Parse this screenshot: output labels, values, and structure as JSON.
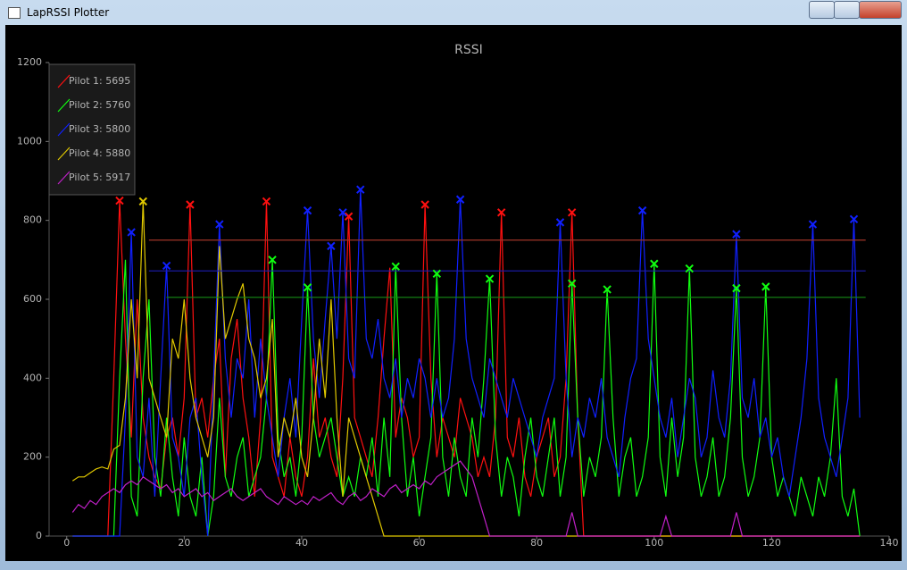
{
  "window": {
    "title": "LapRSSI Plotter"
  },
  "chart_data": {
    "type": "line",
    "title": "RSSI",
    "xlim": [
      -3,
      140
    ],
    "xticks": [
      0,
      20,
      40,
      60,
      80,
      100,
      120,
      140
    ],
    "ylim": [
      0,
      1200
    ],
    "yticks": [
      0,
      200,
      400,
      600,
      800,
      1000,
      1200
    ],
    "grid": false,
    "legend": "top-left",
    "x": [
      1,
      2,
      3,
      4,
      5,
      6,
      7,
      8,
      9,
      10,
      11,
      12,
      13,
      14,
      15,
      16,
      17,
      18,
      19,
      20,
      21,
      22,
      23,
      24,
      25,
      26,
      27,
      28,
      29,
      30,
      31,
      32,
      33,
      34,
      35,
      36,
      37,
      38,
      39,
      40,
      41,
      42,
      43,
      44,
      45,
      46,
      47,
      48,
      49,
      50,
      51,
      52,
      53,
      54,
      55,
      56,
      57,
      58,
      59,
      60,
      61,
      62,
      63,
      64,
      65,
      66,
      67,
      68,
      69,
      70,
      71,
      72,
      73,
      74,
      75,
      76,
      77,
      78,
      79,
      80,
      81,
      82,
      83,
      84,
      85,
      86,
      87,
      88,
      89,
      90,
      91,
      92,
      93,
      94,
      95,
      96,
      97,
      98,
      99,
      100,
      101,
      102,
      103,
      104,
      105,
      106,
      107,
      108,
      109,
      110,
      111,
      112,
      113,
      114,
      115,
      116,
      117,
      118,
      119,
      120,
      121,
      122,
      123,
      124,
      125,
      126,
      127,
      128,
      129,
      130,
      131,
      132,
      133,
      134,
      135
    ],
    "series": [
      {
        "name": "Pilot 1: 5695",
        "color": "#ff1010",
        "values": [
          0,
          0,
          0,
          0,
          0,
          0,
          0,
          400,
          850,
          500,
          250,
          600,
          300,
          200,
          150,
          120,
          250,
          300,
          200,
          350,
          840,
          300,
          350,
          250,
          400,
          500,
          150,
          450,
          550,
          350,
          250,
          100,
          300,
          848,
          200,
          150,
          100,
          250,
          150,
          100,
          200,
          450,
          250,
          300,
          200,
          150,
          400,
          810,
          300,
          250,
          200,
          150,
          300,
          500,
          680,
          250,
          350,
          300,
          200,
          250,
          840,
          400,
          200,
          300,
          250,
          200,
          350,
          300,
          250,
          150,
          200,
          150,
          300,
          820,
          250,
          200,
          300,
          150,
          100,
          200,
          250,
          300,
          150,
          200,
          400,
          820,
          300,
          0,
          0,
          0,
          0,
          0,
          0,
          0,
          0,
          0,
          0,
          0,
          0,
          0,
          0,
          0,
          0,
          0,
          0,
          0,
          0,
          0,
          0,
          0,
          0,
          0,
          0,
          0,
          0,
          0,
          0,
          0,
          0,
          0,
          0,
          0,
          0,
          0,
          0,
          0,
          0,
          0,
          0,
          0,
          0,
          0,
          0,
          0,
          0
        ],
        "peaks": {
          "x": [
            9,
            21,
            34,
            48,
            61,
            74,
            86
          ],
          "y": [
            850,
            840,
            848,
            810,
            840,
            820,
            820
          ]
        }
      },
      {
        "name": "Pilot 2: 5760",
        "color": "#10ff10",
        "values": [
          0,
          0,
          0,
          0,
          0,
          0,
          0,
          0,
          400,
          700,
          100,
          50,
          400,
          600,
          200,
          100,
          300,
          150,
          50,
          250,
          100,
          50,
          200,
          0,
          100,
          350,
          150,
          100,
          200,
          250,
          100,
          150,
          200,
          350,
          700,
          250,
          150,
          200,
          100,
          250,
          630,
          300,
          200,
          250,
          300,
          200,
          100,
          150,
          100,
          200,
          150,
          250,
          100,
          300,
          150,
          683,
          300,
          100,
          200,
          50,
          150,
          250,
          665,
          200,
          100,
          250,
          150,
          100,
          300,
          200,
          400,
          652,
          250,
          100,
          200,
          150,
          50,
          200,
          300,
          150,
          100,
          200,
          300,
          100,
          200,
          640,
          300,
          100,
          200,
          150,
          250,
          625,
          300,
          100,
          200,
          250,
          100,
          150,
          250,
          690,
          200,
          100,
          300,
          150,
          250,
          678,
          200,
          100,
          150,
          250,
          100,
          150,
          300,
          628,
          200,
          100,
          150,
          250,
          632,
          200,
          100,
          150,
          100,
          50,
          150,
          100,
          50,
          150,
          100,
          200,
          400,
          100,
          50,
          120,
          0
        ],
        "peaks": {
          "x": [
            35,
            41,
            56,
            63,
            72,
            86,
            92,
            100,
            106,
            114,
            119
          ],
          "y": [
            700,
            630,
            683,
            665,
            652,
            640,
            625,
            690,
            678,
            628,
            632
          ]
        }
      },
      {
        "name": "Pilot 3: 5800",
        "color": "#1020ff",
        "values": [
          0,
          0,
          0,
          0,
          0,
          0,
          0,
          0,
          0,
          300,
          770,
          200,
          150,
          350,
          100,
          400,
          685,
          250,
          200,
          100,
          300,
          350,
          150,
          0,
          400,
          790,
          450,
          300,
          450,
          400,
          600,
          300,
          500,
          350,
          250,
          150,
          300,
          400,
          250,
          550,
          825,
          500,
          350,
          550,
          735,
          500,
          820,
          450,
          400,
          878,
          500,
          450,
          550,
          400,
          350,
          450,
          300,
          400,
          350,
          450,
          400,
          300,
          400,
          300,
          350,
          500,
          853,
          500,
          400,
          350,
          300,
          450,
          400,
          350,
          300,
          400,
          350,
          300,
          250,
          200,
          300,
          350,
          400,
          795,
          400,
          200,
          300,
          250,
          350,
          300,
          400,
          250,
          200,
          150,
          300,
          400,
          450,
          825,
          500,
          400,
          300,
          250,
          350,
          200,
          300,
          400,
          350,
          200,
          250,
          420,
          300,
          250,
          400,
          765,
          350,
          300,
          400,
          250,
          300,
          200,
          250,
          150,
          100,
          200,
          300,
          450,
          790,
          350,
          250,
          200,
          150,
          250,
          350,
          803,
          300
        ],
        "peaks": {
          "x": [
            11,
            17,
            26,
            41,
            45,
            47,
            50,
            67,
            84,
            98,
            114,
            127,
            134
          ],
          "y": [
            770,
            685,
            790,
            825,
            735,
            820,
            878,
            853,
            795,
            825,
            765,
            790,
            803
          ]
        }
      },
      {
        "name": "Pilot 4: 5880",
        "color": "#e0c800",
        "values": [
          140,
          150,
          150,
          160,
          170,
          175,
          170,
          220,
          230,
          350,
          600,
          400,
          848,
          400,
          350,
          300,
          250,
          500,
          450,
          600,
          400,
          300,
          250,
          200,
          300,
          735,
          500,
          550,
          600,
          640,
          500,
          450,
          350,
          400,
          550,
          200,
          300,
          250,
          350,
          200,
          150,
          300,
          500,
          350,
          600,
          300,
          100,
          300,
          250,
          200,
          150,
          100,
          50,
          0,
          0,
          0,
          0,
          0,
          0,
          0,
          0,
          0,
          0,
          0,
          0,
          0,
          0,
          0,
          0,
          0,
          0,
          0,
          0,
          0,
          0,
          0,
          0,
          0,
          0,
          0,
          0,
          0,
          0,
          0,
          0,
          0,
          0,
          0,
          0,
          0,
          0,
          0,
          0,
          0,
          0,
          0,
          0,
          0,
          0,
          0,
          0,
          0,
          0,
          0,
          0,
          0,
          0,
          0,
          0,
          0,
          0,
          0,
          0,
          0,
          0,
          0,
          0,
          0,
          0,
          0,
          0,
          0,
          0,
          0,
          0,
          0,
          0,
          0,
          0,
          0,
          0,
          0,
          0,
          0,
          0
        ],
        "peaks": {
          "x": [
            13
          ],
          "y": [
            848
          ]
        }
      },
      {
        "name": "Pilot 5: 5917",
        "color": "#c020c8",
        "values": [
          60,
          80,
          70,
          90,
          80,
          100,
          110,
          120,
          110,
          130,
          140,
          130,
          150,
          140,
          130,
          120,
          130,
          110,
          120,
          100,
          110,
          120,
          100,
          110,
          90,
          100,
          110,
          120,
          100,
          90,
          100,
          110,
          120,
          100,
          90,
          80,
          100,
          90,
          80,
          90,
          80,
          100,
          90,
          100,
          110,
          90,
          80,
          100,
          110,
          90,
          100,
          120,
          110,
          100,
          120,
          130,
          110,
          120,
          130,
          120,
          140,
          130,
          150,
          160,
          170,
          180,
          190,
          170,
          150,
          100,
          50,
          0,
          0,
          0,
          0,
          0,
          0,
          0,
          0,
          0,
          0,
          0,
          0,
          0,
          0,
          60,
          0,
          0,
          0,
          0,
          0,
          0,
          0,
          0,
          0,
          0,
          0,
          0,
          0,
          0,
          0,
          50,
          0,
          0,
          0,
          0,
          0,
          0,
          0,
          0,
          0,
          0,
          0,
          60,
          0,
          0,
          0,
          0,
          0,
          0,
          0,
          0,
          0,
          0,
          0,
          0,
          0,
          0,
          0,
          0,
          0,
          0,
          0,
          0,
          0
        ],
        "peaks": {
          "x": [],
          "y": []
        }
      }
    ],
    "thresholds": [
      {
        "color": "#a03428",
        "value": 750,
        "x": [
          14,
          136
        ]
      },
      {
        "color": "#1c1cb0",
        "value": 672,
        "x": [
          14,
          136
        ]
      },
      {
        "color": "#168a16",
        "value": 605,
        "x": [
          17,
          136
        ]
      }
    ]
  }
}
